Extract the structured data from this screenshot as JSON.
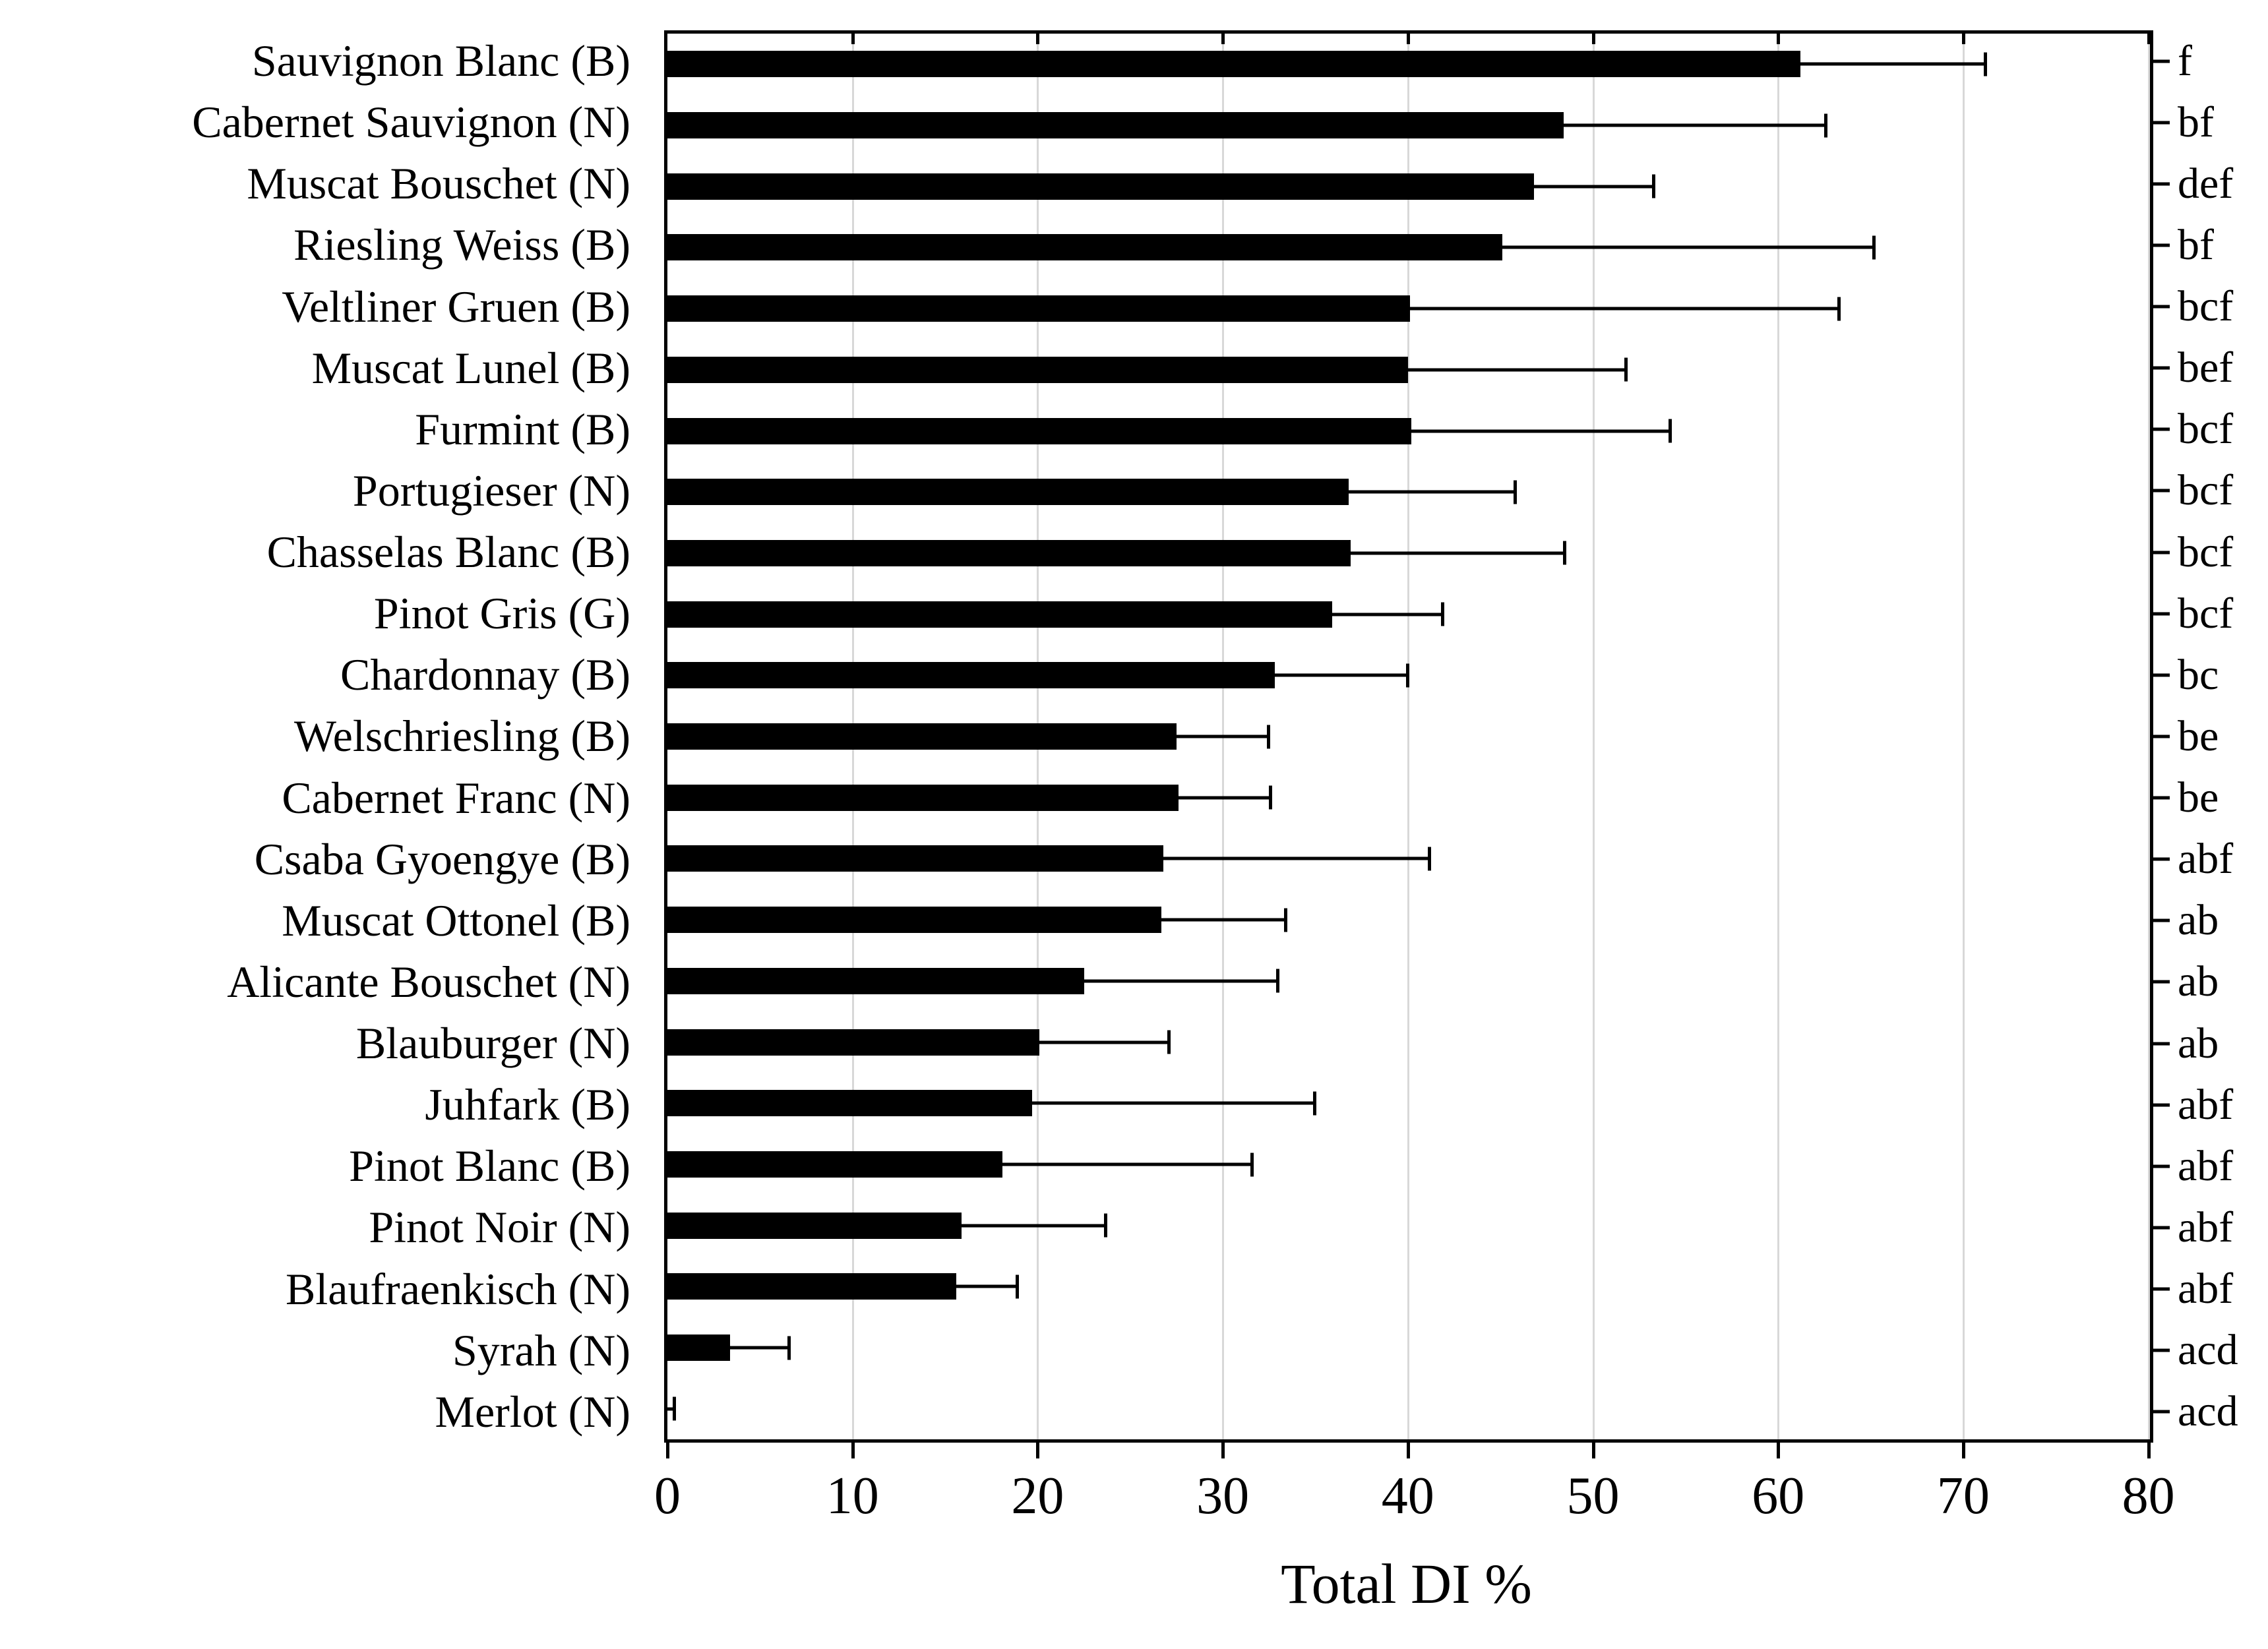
{
  "chart_data": {
    "type": "bar",
    "orientation": "horizontal",
    "title": "",
    "xlabel": "Total DI %",
    "ylabel": "",
    "xlim": [
      0,
      80
    ],
    "x_ticks": [
      0,
      10,
      20,
      30,
      40,
      50,
      60,
      70,
      80
    ],
    "grid": {
      "vertical": true,
      "horizontal": false
    },
    "legend": null,
    "colors": {
      "bar": "#000000",
      "gridline": "#d8d8d8",
      "axis": "#000000",
      "background": "#ffffff"
    },
    "categories": [
      "Sauvignon Blanc (B)",
      "Cabernet Sauvignon (N)",
      "Muscat Bouschet (N)",
      "Riesling Weiss (B)",
      "Veltliner Gruen (B)",
      "Muscat Lunel (B)",
      "Furmint (B)",
      "Portugieser (N)",
      "Chasselas Blanc (B)",
      "Pinot Gris (G)",
      "Chardonnay (B)",
      "Welschriesling (B)",
      "Cabernet Franc (N)",
      "Csaba Gyoengye (B)",
      "Muscat Ottonel (B)",
      "Alicante Bouschet (N)",
      "Blauburger (N)",
      "Juhfark (B)",
      "Pinot Blanc (B)",
      "Pinot Noir (N)",
      "Blaufraenkisch (N)",
      "Syrah (N)",
      "Merlot (N)"
    ],
    "values": [
      61.2,
      48.4,
      46.8,
      45.1,
      40.1,
      40.0,
      40.2,
      36.8,
      36.9,
      35.9,
      32.8,
      27.5,
      27.6,
      26.8,
      26.7,
      22.5,
      20.1,
      19.7,
      18.1,
      15.9,
      15.6,
      3.4,
      0
    ],
    "error_high": [
      71.2,
      62.6,
      53.3,
      65.2,
      63.3,
      51.8,
      54.2,
      45.8,
      48.5,
      41.9,
      40.0,
      32.5,
      32.6,
      41.2,
      33.4,
      33.0,
      27.1,
      35.0,
      31.6,
      23.7,
      18.9,
      6.6,
      0.4
    ],
    "sig_letters": [
      "f",
      "bf",
      "def",
      "bf",
      "bcf",
      "bef",
      "bcf",
      "bcf",
      "bcf",
      "bcf",
      "bc",
      "be",
      "be",
      "abf",
      "ab",
      "ab",
      "ab",
      "abf",
      "abf",
      "abf",
      "abf",
      "acd",
      "acd"
    ]
  }
}
